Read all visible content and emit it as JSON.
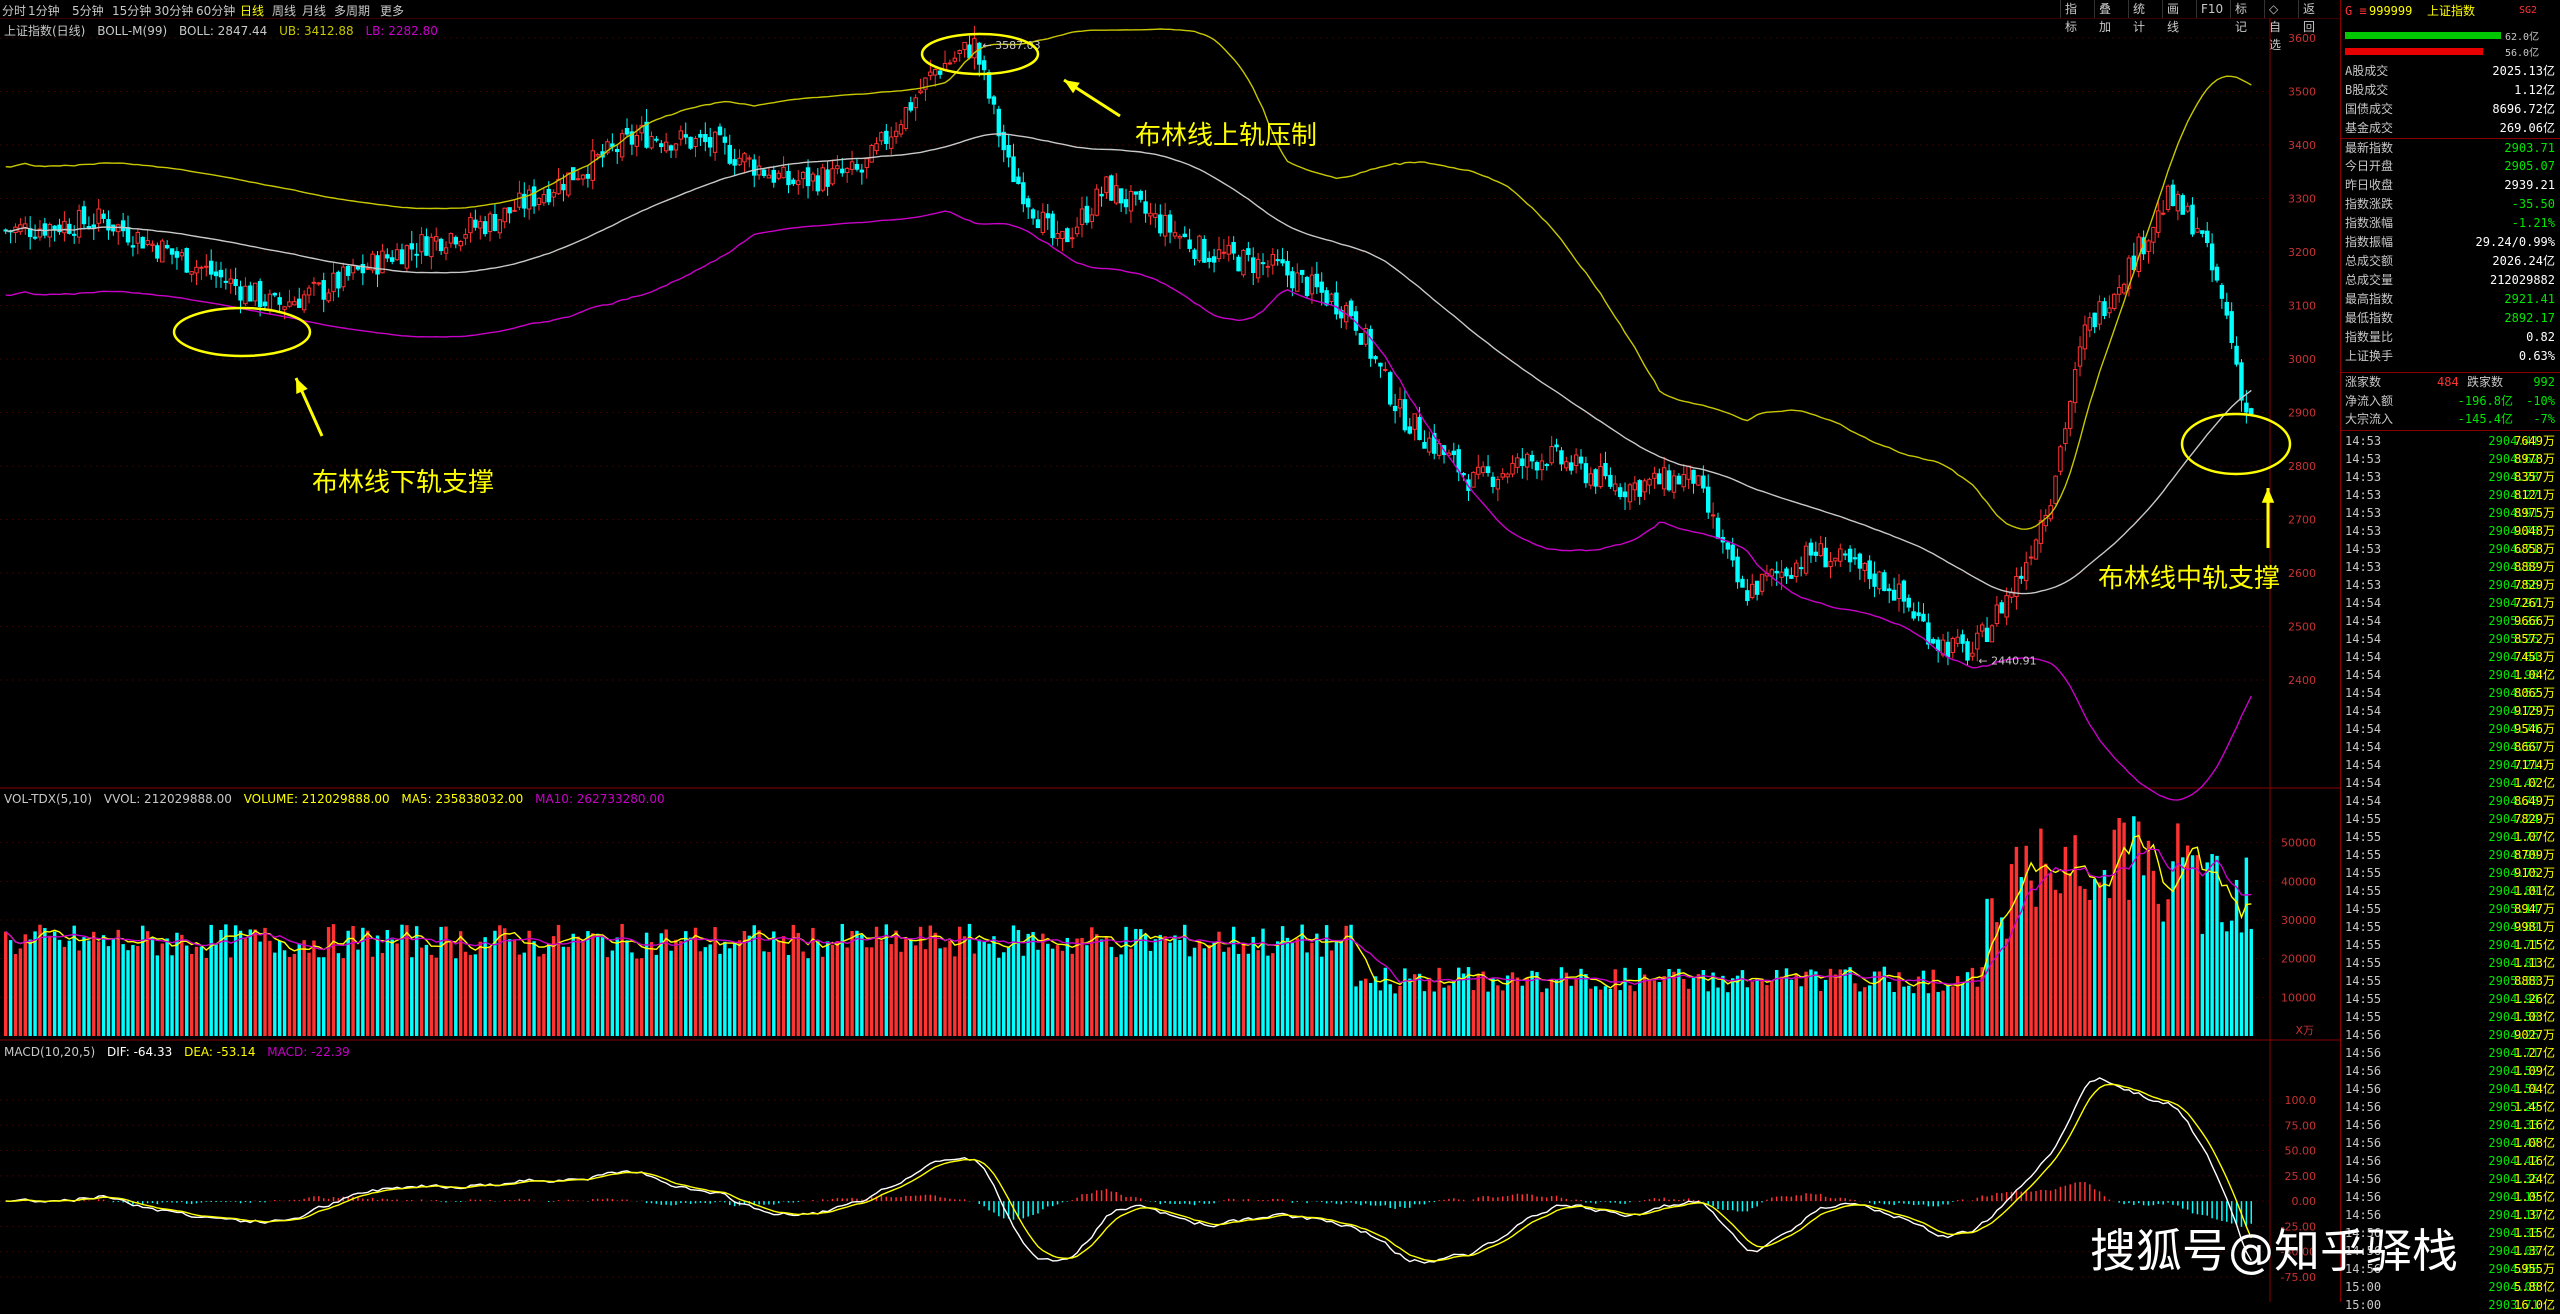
{
  "menu": {
    "periods": [
      "分时",
      "1分钟",
      "5分钟",
      "15分钟",
      "30分钟",
      "60分钟",
      "日线",
      "周线",
      "月线",
      "多周期",
      "更多"
    ],
    "active_period": "日线",
    "right_tools": [
      "指标",
      "叠加",
      "统计",
      "画线",
      "F10",
      "标记",
      "◇自选",
      "返回"
    ]
  },
  "main_chart": {
    "title": "上证指数(日线)",
    "indicator_label": "BOLL-M(99)",
    "boll": "BOLL: 2847.44",
    "ub": "UB: 3412.88",
    "lb": "LB: 2282.80",
    "high_marker": "3587.03",
    "low_marker": "2440.91",
    "price_ticks": [
      "3600",
      "3500",
      "3400",
      "3300",
      "3200",
      "3100",
      "3000",
      "2900",
      "2800",
      "2700",
      "2600",
      "2500",
      "2400"
    ]
  },
  "annotations": {
    "upper": "布林线上轨压制",
    "lower": "布林线下轨支撑",
    "middle": "布林线中轨支撑"
  },
  "volume_chart": {
    "title": "VOL-TDX(5,10)",
    "vvol": "VVOL: 212029888.00",
    "volume": "VOLUME: 212029888.00",
    "ma5": "MA5: 235838032.00",
    "ma10": "MA10: 262733280.00",
    "ticks": [
      "50000",
      "40000",
      "30000",
      "20000",
      "10000"
    ],
    "unit": "X万"
  },
  "macd_chart": {
    "title": "MACD(10,20,5)",
    "dif": "DIF: -64.33",
    "dea": "DEA: -53.14",
    "macd": "MACD: -22.39",
    "ticks": [
      "100.0",
      "75.00",
      "50.00",
      "25.00",
      "0.00",
      "-25.00",
      "-50.00",
      "-75.00"
    ]
  },
  "panel": {
    "code": "999999",
    "name": "上证指数",
    "extra": "SG2",
    "bar_top": "62.0亿",
    "bar_bottom": "56.0亿",
    "stats": [
      {
        "label": "A股成交",
        "value": "2025.13亿",
        "color": "#ffffff"
      },
      {
        "label": "B股成交",
        "value": "1.12亿",
        "color": "#ffffff"
      },
      {
        "label": "国债成交",
        "value": "8696.72亿",
        "color": "#ffffff"
      },
      {
        "label": "基金成交",
        "value": "269.06亿",
        "color": "#ffffff"
      },
      {
        "label": "最新指数",
        "value": "2903.71",
        "color": "#00e600"
      },
      {
        "label": "今日开盘",
        "value": "2905.07",
        "color": "#00e600"
      },
      {
        "label": "昨日收盘",
        "value": "2939.21",
        "color": "#ffffff"
      },
      {
        "label": "指数涨跌",
        "value": "-35.50",
        "color": "#00e600"
      },
      {
        "label": "指数涨幅",
        "value": "-1.21%",
        "color": "#00e600"
      },
      {
        "label": "指数振幅",
        "value": "29.24/0.99%",
        "color": "#ffffff"
      },
      {
        "label": "总成交额",
        "value": "2026.24亿",
        "color": "#ffffff"
      },
      {
        "label": "总成交量",
        "value": "212029882",
        "color": "#ffffff"
      },
      {
        "label": "最高指数",
        "value": "2921.41",
        "color": "#00e600"
      },
      {
        "label": "最低指数",
        "value": "2892.17",
        "color": "#00e600"
      },
      {
        "label": "指数量比",
        "value": "0.82",
        "color": "#ffffff"
      },
      {
        "label": "上证换手",
        "value": "0.63%",
        "color": "#ffffff"
      }
    ],
    "updown": {
      "up_label": "涨家数",
      "up_value": "484",
      "down_label": "跌家数",
      "down_value": "992"
    },
    "flows": [
      {
        "label": "净流入额",
        "value": "-196.8亿",
        "pct": "-10%"
      },
      {
        "label": "大宗流入",
        "value": "-145.4亿",
        "pct": "-7%"
      }
    ],
    "ticks": [
      {
        "t": "14:53",
        "p": "2904.41",
        "v": "7649万"
      },
      {
        "t": "14:53",
        "p": "2904.62",
        "v": "8978万"
      },
      {
        "t": "14:53",
        "p": "2904.78",
        "v": "8357万"
      },
      {
        "t": "14:53",
        "p": "2904.27",
        "v": "8121万"
      },
      {
        "t": "14:53",
        "p": "2904.91",
        "v": "8975万"
      },
      {
        "t": "14:53",
        "p": "2904.78",
        "v": "9048万"
      },
      {
        "t": "14:53",
        "p": "2904.71",
        "v": "6858万"
      },
      {
        "t": "14:53",
        "p": "2904.32",
        "v": "8889万"
      },
      {
        "t": "14:53",
        "p": "2904.56",
        "v": "7829万"
      },
      {
        "t": "14:54",
        "p": "2904.97",
        "v": "7261万"
      },
      {
        "t": "14:54",
        "p": "2905.23",
        "v": "9666万"
      },
      {
        "t": "14:54",
        "p": "2905.26",
        "v": "8572万"
      },
      {
        "t": "14:54",
        "p": "2904.64",
        "v": "7453万"
      },
      {
        "t": "14:54",
        "p": "2904.98",
        "v": "1.04亿"
      },
      {
        "t": "14:54",
        "p": "2904.52",
        "v": "8065万"
      },
      {
        "t": "14:54",
        "p": "2904.75",
        "v": "9129万"
      },
      {
        "t": "14:54",
        "p": "2904.74",
        "v": "9546万"
      },
      {
        "t": "14:54",
        "p": "2904.59",
        "v": "8667万"
      },
      {
        "t": "14:54",
        "p": "2904.21",
        "v": "7174万"
      },
      {
        "t": "14:54",
        "p": "2904.47",
        "v": "1.02亿"
      },
      {
        "t": "14:54",
        "p": "2904.73",
        "v": "8649万"
      },
      {
        "t": "14:55",
        "p": "2904.24",
        "v": "7829万"
      },
      {
        "t": "14:55",
        "p": "2904.73",
        "v": "1.07亿"
      },
      {
        "t": "14:55",
        "p": "2904.99",
        "v": "8709万"
      },
      {
        "t": "14:55",
        "p": "2904.75",
        "v": "9102万"
      },
      {
        "t": "14:55",
        "p": "2904.89",
        "v": "1.01亿"
      },
      {
        "t": "14:55",
        "p": "2905.14",
        "v": "8947万"
      },
      {
        "t": "14:55",
        "p": "2904.89",
        "v": "9981万"
      },
      {
        "t": "14:55",
        "p": "2904.71",
        "v": "1.15亿"
      },
      {
        "t": "14:55",
        "p": "2904.81",
        "v": "1.13亿"
      },
      {
        "t": "14:55",
        "p": "2905.33",
        "v": "8883万"
      },
      {
        "t": "14:55",
        "p": "2904.94",
        "v": "1.26亿"
      },
      {
        "t": "14:55",
        "p": "2904.58",
        "v": "1.03亿"
      },
      {
        "t": "14:56",
        "p": "2904.26",
        "v": "9027万"
      },
      {
        "t": "14:56",
        "p": "2904.71",
        "v": "1.27亿"
      },
      {
        "t": "14:56",
        "p": "2904.52",
        "v": "1.09亿"
      },
      {
        "t": "14:56",
        "p": "2904.51",
        "v": "1.04亿"
      },
      {
        "t": "14:56",
        "p": "2905.29",
        "v": "1.45亿"
      },
      {
        "t": "14:56",
        "p": "2904.33",
        "v": "1.16亿"
      },
      {
        "t": "14:56",
        "p": "2904.47",
        "v": "1.08亿"
      },
      {
        "t": "14:56",
        "p": "2904.42",
        "v": "1.16亿"
      },
      {
        "t": "14:56",
        "p": "2904.36",
        "v": "1.24亿"
      },
      {
        "t": "14:56",
        "p": "2904.19",
        "v": "1.05亿"
      },
      {
        "t": "14:56",
        "p": "2904.19",
        "v": "1.37亿"
      },
      {
        "t": "14:56",
        "p": "2904.33",
        "v": "1.15亿"
      },
      {
        "t": "14:56",
        "p": "2904.03",
        "v": "1.37亿"
      },
      {
        "t": "14:56",
        "p": "2904.08",
        "v": "5955万"
      },
      {
        "t": "15:00",
        "p": "2904.05",
        "v": "5.88亿"
      },
      {
        "t": "15:00",
        "p": "2903.71",
        "v": "16.0亿"
      }
    ]
  },
  "watermark": "搜狐号@知乎驿栈",
  "colors": {
    "up": "#ff3232",
    "down": "#00ffff",
    "upper_band": "#c8c800",
    "middle_band": "#c8c8c8",
    "lower_band": "#c800c8",
    "grid": "#3a0000"
  }
}
